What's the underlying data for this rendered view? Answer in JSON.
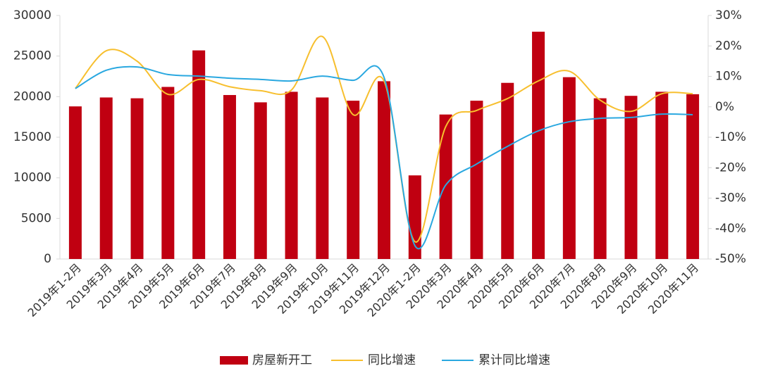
{
  "chart_data": {
    "type": "bar-line",
    "categories": [
      "2019年1-2月",
      "2019年3月",
      "2019年4月",
      "2019年5月",
      "2019年6月",
      "2019年7月",
      "2019年8月",
      "2019年9月",
      "2019年10月",
      "2019年11月",
      "2019年12月",
      "2020年1-2月",
      "2020年3月",
      "2020年4月",
      "2020年5月",
      "2020年6月",
      "2020年7月",
      "2020年8月",
      "2020年9月",
      "2020年10月",
      "2020年11月"
    ],
    "series": [
      {
        "name": "房屋新开工",
        "type": "bar",
        "color": "#c00011",
        "values": [
          18800,
          19900,
          19800,
          21200,
          25700,
          20200,
          19300,
          20600,
          19900,
          19500,
          21900,
          10300,
          17800,
          19500,
          21700,
          28000,
          22400,
          19800,
          20100,
          20600,
          20300
        ]
      },
      {
        "name": "同比增速",
        "type": "line",
        "axis": "y2",
        "color": "#f7bf2e",
        "values": [
          6.0,
          18.4,
          15.0,
          4.1,
          9.0,
          6.6,
          5.3,
          5.5,
          23.1,
          -2.6,
          8.5,
          -44.3,
          -6.5,
          -1.2,
          2.7,
          8.5,
          11.7,
          2.2,
          -1.5,
          4.3,
          4.3
        ]
      },
      {
        "name": "累计同比增速",
        "type": "line",
        "axis": "y2",
        "color": "#2aa8e0",
        "values": [
          6.0,
          12.0,
          13.1,
          10.6,
          10.1,
          9.4,
          9.0,
          8.5,
          10.1,
          8.7,
          9.7,
          -45.6,
          -25.7,
          -18.8,
          -13.0,
          -7.9,
          -4.9,
          -3.8,
          -3.5,
          -2.4,
          -2.6
        ]
      }
    ],
    "ylim": [
      0,
      30000
    ],
    "yticks": [
      0,
      5000,
      10000,
      15000,
      20000,
      25000,
      30000
    ],
    "y2lim": [
      -50,
      30
    ],
    "y2ticks": [
      {
        "value": -50,
        "label": "-50%"
      },
      {
        "value": -40,
        "label": "-40%"
      },
      {
        "value": -30,
        "label": "-30%"
      },
      {
        "value": -20,
        "label": "-20%"
      },
      {
        "value": -10,
        "label": "-10%"
      },
      {
        "value": 0,
        "label": "0%"
      },
      {
        "value": 10,
        "label": "10%"
      },
      {
        "value": 20,
        "label": "20%"
      },
      {
        "value": 30,
        "label": "30%"
      }
    ],
    "grid": false,
    "legend": "bottom"
  }
}
